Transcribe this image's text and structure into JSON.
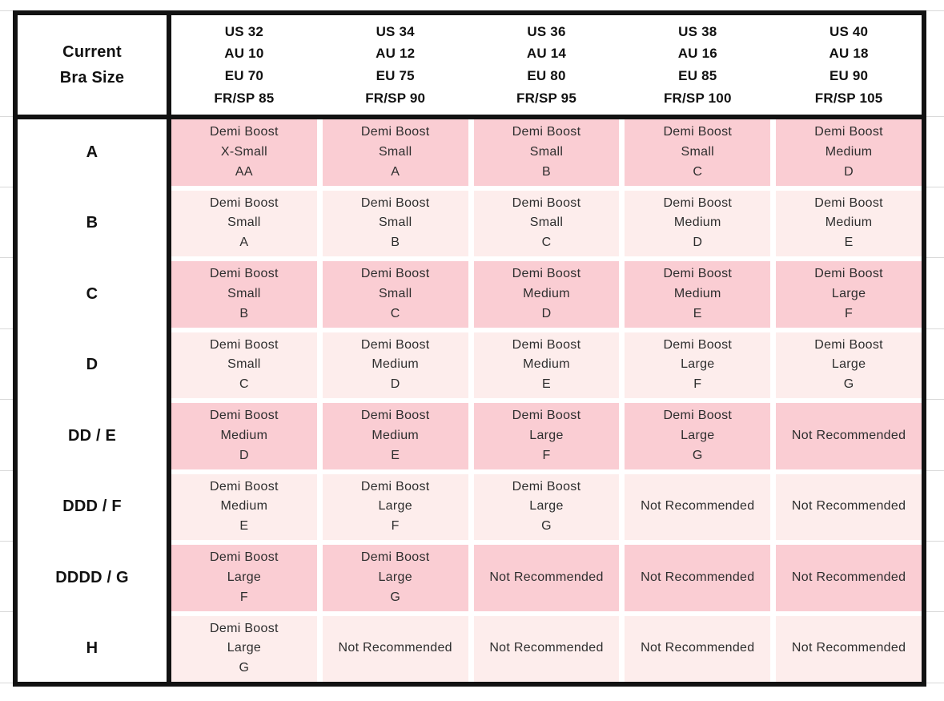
{
  "colors": {
    "background": "#ffffff",
    "table_border": "#121212",
    "cell_dark_pink": "#facdd3",
    "cell_light_pink": "#fdedec",
    "cell_text": "#2e2e2e",
    "header_text": "#111111",
    "margin_gridline": "#d9d9d9"
  },
  "chart_data": {
    "type": "table",
    "corner_header": [
      "Current",
      "Bra Size"
    ],
    "column_headers": [
      [
        "US 32",
        "AU 10",
        "EU 70",
        "FR/SP 85"
      ],
      [
        "US 34",
        "AU 12",
        "EU 75",
        "FR/SP 90"
      ],
      [
        "US 36",
        "AU 14",
        "EU 80",
        "FR/SP 95"
      ],
      [
        "US 38",
        "AU 16",
        "EU 85",
        "FR/SP 100"
      ],
      [
        "US 40",
        "AU 18",
        "EU 90",
        "FR/SP 105"
      ]
    ],
    "row_headers": [
      "A",
      "B",
      "C",
      "D",
      "DD / E",
      "DDD / F",
      "DDDD / G",
      "H"
    ],
    "cells": [
      [
        [
          "Demi Boost",
          "X-Small",
          "AA"
        ],
        [
          "Demi Boost",
          "Small",
          "A"
        ],
        [
          "Demi Boost",
          "Small",
          "B"
        ],
        [
          "Demi Boost",
          "Small",
          "C"
        ],
        [
          "Demi Boost",
          "Medium",
          "D"
        ]
      ],
      [
        [
          "Demi Boost",
          "Small",
          "A"
        ],
        [
          "Demi Boost",
          "Small",
          "B"
        ],
        [
          "Demi Boost",
          "Small",
          "C"
        ],
        [
          "Demi Boost",
          "Medium",
          "D"
        ],
        [
          "Demi Boost",
          "Medium",
          "E"
        ]
      ],
      [
        [
          "Demi Boost",
          "Small",
          "B"
        ],
        [
          "Demi Boost",
          "Small",
          "C"
        ],
        [
          "Demi Boost",
          "Medium",
          "D"
        ],
        [
          "Demi Boost",
          "Medium",
          "E"
        ],
        [
          "Demi Boost",
          "Large",
          "F"
        ]
      ],
      [
        [
          "Demi Boost",
          "Small",
          "C"
        ],
        [
          "Demi Boost",
          "Medium",
          "D"
        ],
        [
          "Demi Boost",
          "Medium",
          "E"
        ],
        [
          "Demi Boost",
          "Large",
          "F"
        ],
        [
          "Demi Boost",
          "Large",
          "G"
        ]
      ],
      [
        [
          "Demi Boost",
          "Medium",
          "D"
        ],
        [
          "Demi Boost",
          "Medium",
          "E"
        ],
        [
          "Demi Boost",
          "Large",
          "F"
        ],
        [
          "Demi Boost",
          "Large",
          "G"
        ],
        [
          "Not Recommended"
        ]
      ],
      [
        [
          "Demi Boost",
          "Medium",
          "E"
        ],
        [
          "Demi Boost",
          "Large",
          "F"
        ],
        [
          "Demi Boost",
          "Large",
          "G"
        ],
        [
          "Not Recommended"
        ],
        [
          "Not Recommended"
        ]
      ],
      [
        [
          "Demi Boost",
          "Large",
          "F"
        ],
        [
          "Demi Boost",
          "Large",
          "G"
        ],
        [
          "Not Recommended"
        ],
        [
          "Not Recommended"
        ],
        [
          "Not Recommended"
        ]
      ],
      [
        [
          "Demi Boost",
          "Large",
          "G"
        ],
        [
          "Not Recommended"
        ],
        [
          "Not Recommended"
        ],
        [
          "Not Recommended"
        ],
        [
          "Not Recommended"
        ]
      ]
    ]
  }
}
